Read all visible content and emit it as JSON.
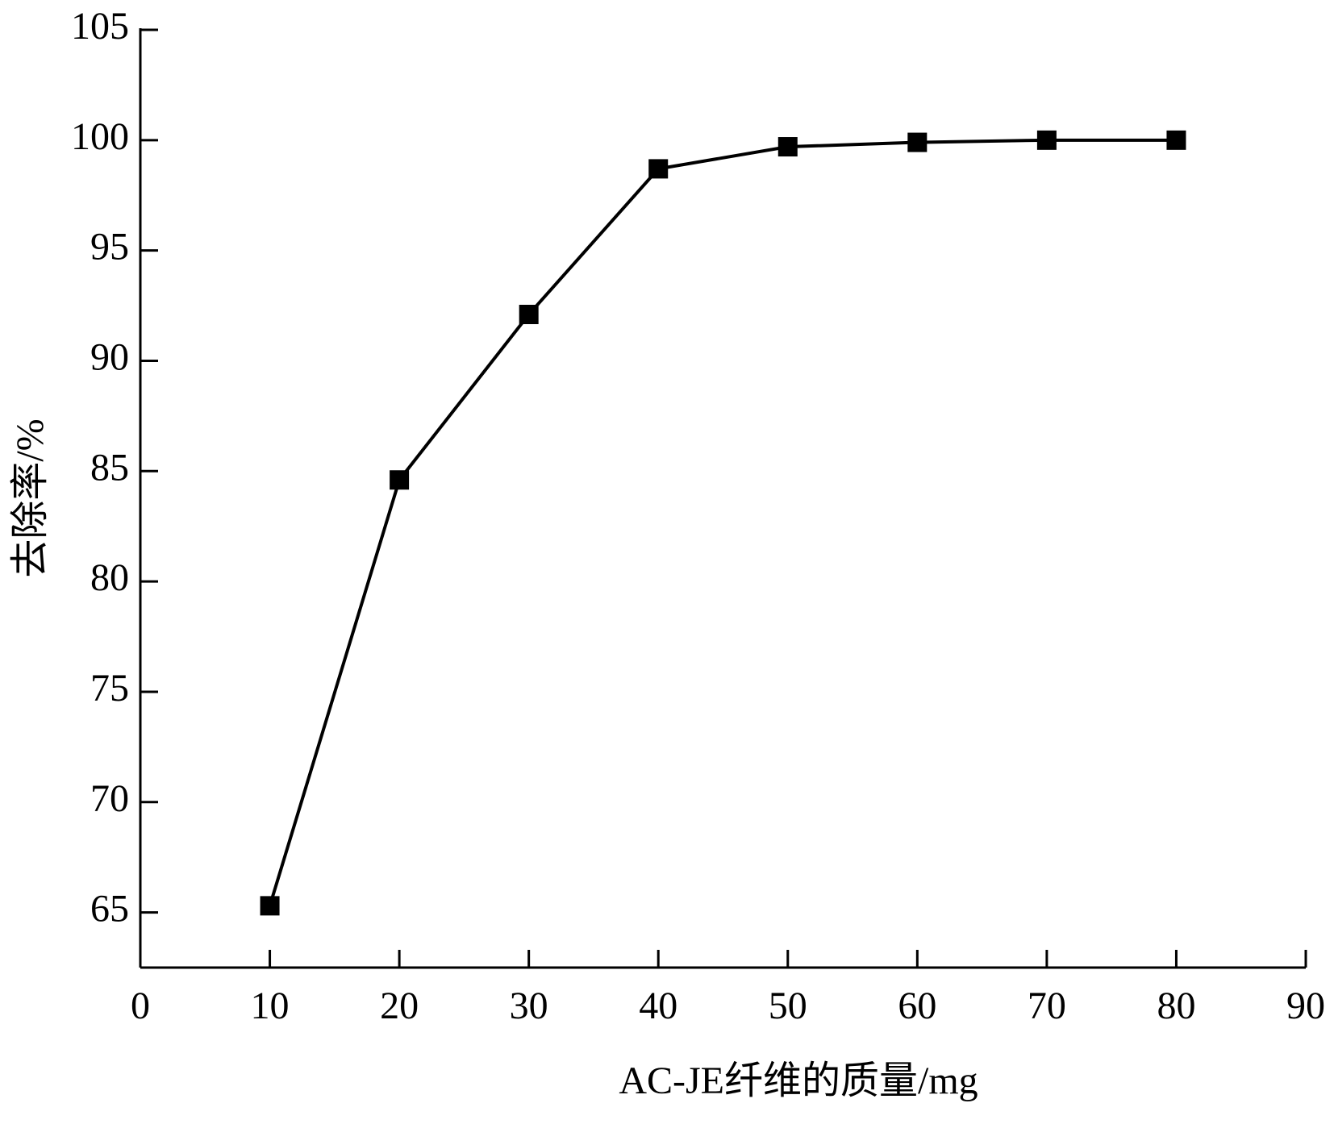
{
  "chart_data": {
    "type": "line",
    "x_label": "AC-JE纤维的质量/mg",
    "y_label": "去除率/%",
    "x": [
      10,
      20,
      30,
      40,
      50,
      60,
      70,
      80
    ],
    "series": [
      {
        "color": "#000000",
        "marker": "square",
        "values": [
          65.3,
          84.6,
          92.1,
          98.7,
          99.7,
          99.9,
          100,
          100
        ]
      }
    ],
    "xlim": [
      0,
      90
    ],
    "xticks": [
      0,
      10,
      20,
      30,
      40,
      50,
      60,
      70,
      80,
      90
    ],
    "ylim": [
      62.5,
      105
    ],
    "yticks": [
      65,
      70,
      75,
      80,
      85,
      90,
      95,
      100,
      105
    ],
    "grid": false
  }
}
